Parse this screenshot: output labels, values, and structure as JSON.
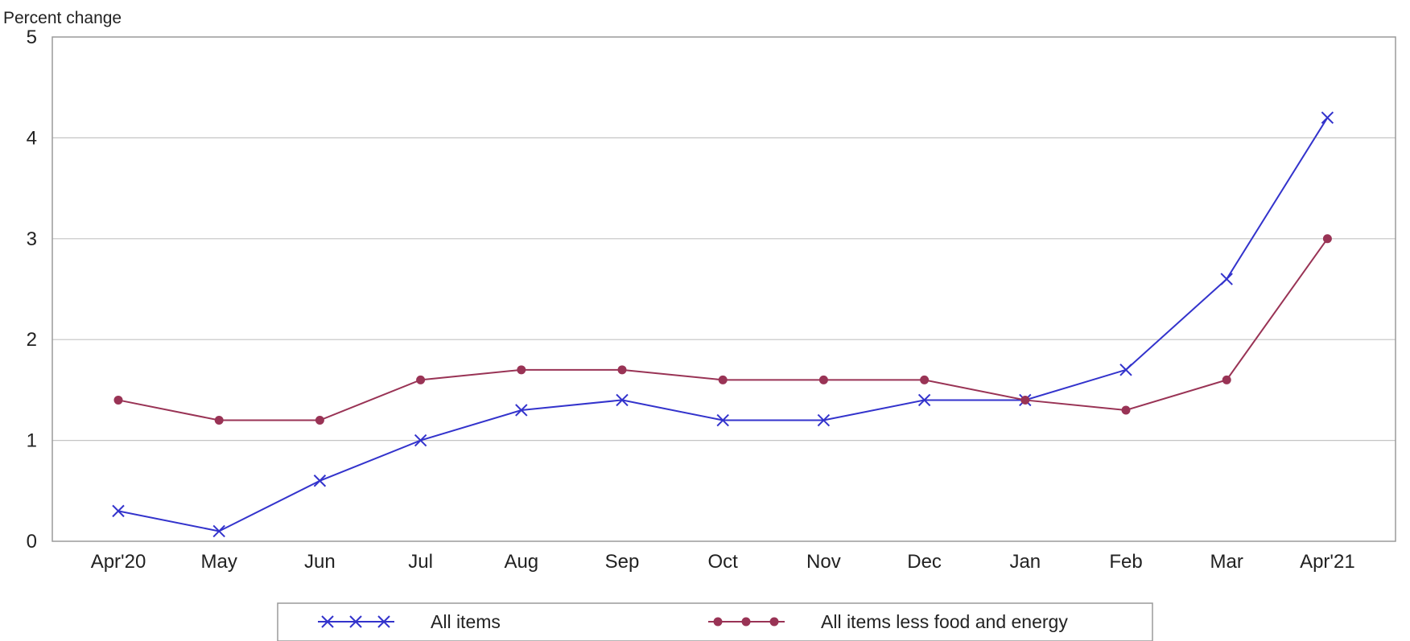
{
  "chart_data": {
    "type": "line",
    "ylabel": "Percent change",
    "ylim": [
      0,
      5
    ],
    "yticks": [
      "0",
      "1",
      "2",
      "3",
      "4",
      "5"
    ],
    "grid": true,
    "legend_position": "bottom",
    "categories": [
      "Apr'20",
      "May",
      "Jun",
      "Jul",
      "Aug",
      "Sep",
      "Oct",
      "Nov",
      "Dec",
      "Jan",
      "Feb",
      "Mar",
      "Apr'21"
    ],
    "series": [
      {
        "name": "All items",
        "color": "#3333cc",
        "marker": "x",
        "values": [
          0.3,
          0.1,
          0.6,
          1.0,
          1.3,
          1.4,
          1.2,
          1.2,
          1.4,
          1.4,
          1.7,
          2.6,
          4.2
        ]
      },
      {
        "name": "All items less food and energy",
        "color": "#993355",
        "marker": "dot",
        "values": [
          1.4,
          1.2,
          1.2,
          1.6,
          1.7,
          1.7,
          1.6,
          1.6,
          1.6,
          1.4,
          1.3,
          1.6,
          3.0
        ]
      }
    ]
  }
}
